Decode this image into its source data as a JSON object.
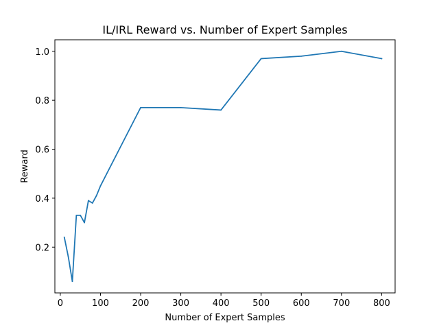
{
  "chart_data": {
    "type": "line",
    "title": "IL/IRL Reward vs. Number of Expert Samples",
    "xlabel": "Number of Expert Samples",
    "ylabel": "Reward",
    "xlim": [
      -13.5,
      833.5
    ],
    "ylim": [
      0.013,
      1.047
    ],
    "x_ticks": [
      0,
      100,
      200,
      300,
      400,
      500,
      600,
      700,
      800
    ],
    "x_tick_labels": [
      "0",
      "100",
      "200",
      "300",
      "400",
      "500",
      "600",
      "700",
      "800"
    ],
    "y_ticks": [
      0.2,
      0.4,
      0.6,
      0.8,
      1.0
    ],
    "y_tick_labels": [
      "0.2",
      "0.4",
      "0.6",
      "0.8",
      "1.0"
    ],
    "grid": false,
    "series": [
      {
        "color": "#1f77b4",
        "x": [
          10,
          20,
          30,
          40,
          50,
          60,
          70,
          80,
          90,
          100,
          200,
          300,
          400,
          500,
          600,
          700,
          800
        ],
        "y": [
          0.24,
          0.16,
          0.06,
          0.33,
          0.33,
          0.3,
          0.39,
          0.38,
          0.41,
          0.45,
          0.77,
          0.77,
          0.76,
          0.97,
          0.98,
          1.0,
          0.97
        ]
      }
    ]
  }
}
